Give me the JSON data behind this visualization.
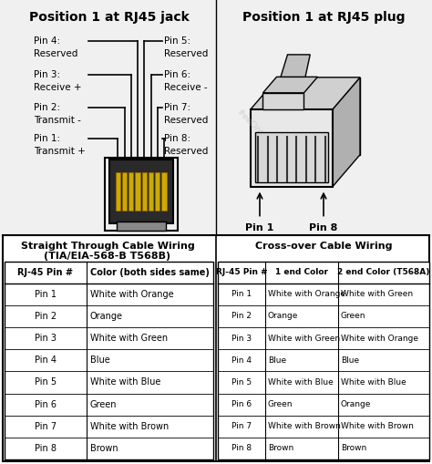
{
  "title_left": "Position 1 at RJ45 jack",
  "title_right": "Position 1 at RJ45 plug",
  "bg_color": "#ffffff",
  "pin_labels_left": [
    {
      "pin": "Pin 4:",
      "desc": "Reserved"
    },
    {
      "pin": "Pin 3:",
      "desc": "Receive +"
    },
    {
      "pin": "Pin 2:",
      "desc": "Transmit -"
    },
    {
      "pin": "Pin 1:",
      "desc": "Transmit +"
    }
  ],
  "pin_labels_right": [
    {
      "pin": "Pin 5:",
      "desc": "Reserved"
    },
    {
      "pin": "Pin 6:",
      "desc": "Receive -"
    },
    {
      "pin": "Pin 7:",
      "desc": "Reserved"
    },
    {
      "pin": "Pin 8:",
      "desc": "Reserved"
    }
  ],
  "straight_title1": "Straight Through Cable Wiring",
  "straight_title2": "(TIA/EIA-568-B T568B)",
  "straight_headers": [
    "RJ-45 Pin #",
    "Color (both sides same)"
  ],
  "straight_rows": [
    [
      "Pin 1",
      "White with Orange"
    ],
    [
      "Pin 2",
      "Orange"
    ],
    [
      "Pin 3",
      "White with Green"
    ],
    [
      "Pin 4",
      "Blue"
    ],
    [
      "Pin 5",
      "White with Blue"
    ],
    [
      "Pin 6",
      "Green"
    ],
    [
      "Pin 7",
      "White with Brown"
    ],
    [
      "Pin 8",
      "Brown"
    ]
  ],
  "crossover_title": "Cross-over Cable Wiring",
  "crossover_headers": [
    "RJ-45 Pin #",
    "1 end Color",
    "2 end Color (T568A)"
  ],
  "crossover_rows": [
    [
      "Pin 1",
      "White with Orange",
      "White with Green"
    ],
    [
      "Pin 2",
      "Orange",
      "Green"
    ],
    [
      "Pin 3",
      "White with Green",
      "White with Orange"
    ],
    [
      "Pin 4",
      "Blue",
      "Blue"
    ],
    [
      "Pin 5",
      "White with Blue",
      "White with Blue"
    ],
    [
      "Pin 6",
      "Green",
      "Orange"
    ],
    [
      "Pin 7",
      "White with Brown",
      "White with Brown"
    ],
    [
      "Pin 8",
      "Brown",
      "Brown"
    ]
  ],
  "watermark": "freeCircuitDiagram.com"
}
